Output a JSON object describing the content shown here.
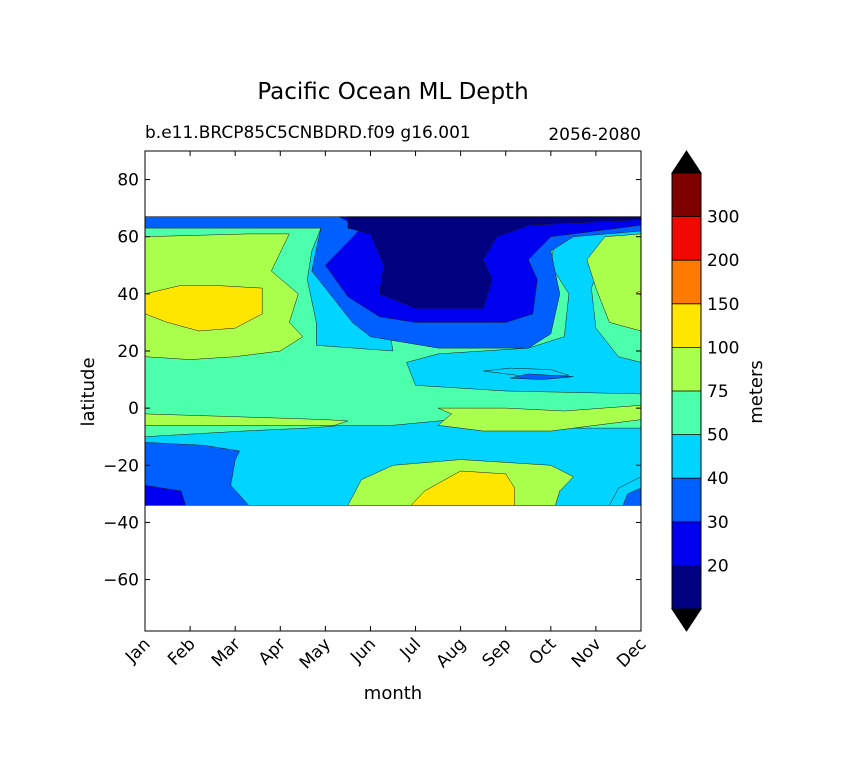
{
  "chart_data": {
    "type": "contourf",
    "title": "Pacific Ocean ML Depth",
    "subtitle_left": "b.e11.BRCP85C5CNBDRD.f09 g16.001",
    "subtitle_right": "2056-2080",
    "xlabel": "month",
    "ylabel": "latitude",
    "colorbar_label": "meters",
    "x_ticks": [
      "Jan",
      "Feb",
      "Mar",
      "Apr",
      "May",
      "Jun",
      "Jul",
      "Aug",
      "Sep",
      "Oct",
      "Nov",
      "Dec"
    ],
    "xlim": [
      0,
      11
    ],
    "y_ticks": [
      80,
      60,
      40,
      20,
      0,
      -20,
      -40,
      -60
    ],
    "ylim": [
      -78,
      90
    ],
    "data_lat_range": [
      -34,
      67
    ],
    "levels": [
      10,
      20,
      30,
      40,
      50,
      75,
      100,
      150,
      200,
      300,
      400
    ],
    "level_labels": [
      "20",
      "30",
      "40",
      "50",
      "75",
      "100",
      "150",
      "200",
      "300"
    ],
    "level_colors": [
      "#000080",
      "#0000f1",
      "#0060ff",
      "#00d4ff",
      "#4cffaa",
      "#aaff4c",
      "#ffe600",
      "#ff7a00",
      "#f10800",
      "#800000"
    ],
    "extend": "both",
    "extend_colors": {
      "min": "#000000",
      "max": "#000000"
    },
    "minus_sign": "−",
    "regions": [
      {
        "level": 4,
        "points": [
          [
            0,
            -34
          ],
          [
            11,
            -34
          ],
          [
            11,
            67
          ],
          [
            0,
            67
          ]
        ]
      },
      {
        "level": 3,
        "points": [
          [
            0,
            -34
          ],
          [
            11,
            -34
          ],
          [
            11,
            -7
          ],
          [
            9.3,
            -7
          ],
          [
            7.5,
            -3
          ],
          [
            5.5,
            -6
          ],
          [
            4.4,
            -6
          ],
          [
            3.6,
            -7
          ],
          [
            2.2,
            -8
          ],
          [
            0,
            -10
          ]
        ]
      },
      {
        "level": 2,
        "points": [
          [
            0,
            -34
          ],
          [
            2.3,
            -34
          ],
          [
            1.9,
            -27
          ],
          [
            2,
            -18
          ],
          [
            2.1,
            -15
          ],
          [
            1.3,
            -13
          ],
          [
            0,
            -12
          ]
        ]
      },
      {
        "level": 1,
        "points": [
          [
            0,
            -34
          ],
          [
            0.9,
            -34
          ],
          [
            0.8,
            -29
          ],
          [
            0,
            -27
          ]
        ]
      },
      {
        "level": 3,
        "points": [
          [
            11,
            -34
          ],
          [
            10.3,
            -34
          ],
          [
            10.5,
            -28
          ],
          [
            11,
            -24
          ]
        ]
      },
      {
        "level": 2,
        "points": [
          [
            11,
            -34
          ],
          [
            10.6,
            -34
          ],
          [
            10.7,
            -30
          ],
          [
            11,
            -28
          ]
        ]
      },
      {
        "level": 5,
        "points": [
          [
            4.5,
            -34
          ],
          [
            9.1,
            -34
          ],
          [
            9.2,
            -29
          ],
          [
            9.5,
            -24
          ],
          [
            9,
            -20
          ],
          [
            8,
            -19
          ],
          [
            7,
            -18
          ],
          [
            5.5,
            -20
          ],
          [
            4.8,
            -25
          ]
        ]
      },
      {
        "level": 6,
        "points": [
          [
            5.9,
            -34
          ],
          [
            8.2,
            -34
          ],
          [
            8.2,
            -28
          ],
          [
            8,
            -23
          ],
          [
            7,
            -22
          ],
          [
            6.2,
            -29
          ]
        ]
      },
      {
        "level": 5,
        "points": [
          [
            0,
            -2
          ],
          [
            2,
            -3
          ],
          [
            4,
            -4
          ],
          [
            4.5,
            -4.5
          ],
          [
            4.2,
            -6
          ],
          [
            3,
            -6
          ],
          [
            1.5,
            -6
          ],
          [
            0,
            -6
          ]
        ]
      },
      {
        "level": 5,
        "points": [
          [
            11,
            1
          ],
          [
            9.3,
            -1
          ],
          [
            8,
            0
          ],
          [
            6.5,
            0
          ],
          [
            6.8,
            -2
          ],
          [
            6.5,
            -6
          ],
          [
            7.5,
            -8
          ],
          [
            9,
            -8
          ],
          [
            11,
            -4
          ]
        ]
      },
      {
        "level": 3,
        "points": [
          [
            11,
            5
          ],
          [
            8,
            6
          ],
          [
            6,
            8
          ],
          [
            5.8,
            16
          ],
          [
            6.5,
            19
          ],
          [
            8.5,
            21
          ],
          [
            9.3,
            25
          ],
          [
            9.4,
            40
          ],
          [
            9,
            50
          ],
          [
            9.1,
            60
          ],
          [
            11,
            63
          ],
          [
            11,
            52
          ],
          [
            10.1,
            50
          ],
          [
            9.9,
            42
          ],
          [
            10,
            28
          ],
          [
            10.5,
            18
          ],
          [
            11,
            16
          ]
        ]
      },
      {
        "level": 3,
        "points": [
          [
            5.5,
            20
          ],
          [
            3.8,
            22
          ],
          [
            3.8,
            30
          ],
          [
            3.6,
            45
          ],
          [
            3.7,
            55
          ],
          [
            3.9,
            63
          ],
          [
            5,
            63
          ]
        ]
      },
      {
        "level": 3,
        "points": [
          [
            7.5,
            13
          ],
          [
            8.5,
            11
          ],
          [
            9.4,
            11.5
          ],
          [
            9,
            13.5
          ],
          [
            8.1,
            14
          ]
        ]
      },
      {
        "level": 2,
        "points": [
          [
            8.1,
            10.5
          ],
          [
            8.8,
            10
          ],
          [
            9.5,
            11
          ],
          [
            8.5,
            12
          ]
        ]
      },
      {
        "level": 2,
        "points": [
          [
            3.9,
            63
          ],
          [
            3.7,
            48
          ],
          [
            4.1,
            40
          ],
          [
            4.6,
            30
          ],
          [
            5,
            25
          ],
          [
            6.5,
            21
          ],
          [
            8.5,
            21
          ],
          [
            9,
            26
          ],
          [
            9.2,
            40
          ],
          [
            9,
            55
          ],
          [
            9.5,
            60
          ],
          [
            11,
            62
          ],
          [
            11,
            67
          ],
          [
            0,
            67
          ],
          [
            0,
            63
          ]
        ]
      },
      {
        "level": 1,
        "points": [
          [
            4.8,
            63
          ],
          [
            4,
            50
          ],
          [
            4.5,
            39
          ],
          [
            5.2,
            32
          ],
          [
            6,
            30
          ],
          [
            8,
            30
          ],
          [
            8.6,
            33
          ],
          [
            8.7,
            45
          ],
          [
            8.5,
            52
          ],
          [
            9,
            60
          ],
          [
            11,
            64
          ],
          [
            11,
            67
          ],
          [
            4.3,
            67
          ]
        ]
      },
      {
        "level": 0,
        "points": [
          [
            4.5,
            67
          ],
          [
            4.5,
            63
          ],
          [
            5,
            61
          ],
          [
            5.3,
            50
          ],
          [
            5.2,
            40
          ],
          [
            6,
            35
          ],
          [
            7.5,
            35
          ],
          [
            7.7,
            45
          ],
          [
            7.5,
            52
          ],
          [
            7.8,
            60
          ],
          [
            8.5,
            64
          ],
          [
            11,
            66
          ],
          [
            11,
            67
          ]
        ]
      },
      {
        "level": 5,
        "points": [
          [
            0,
            60
          ],
          [
            2.3,
            61
          ],
          [
            3.2,
            61
          ],
          [
            2.8,
            48
          ],
          [
            3.4,
            40
          ],
          [
            3.2,
            30
          ],
          [
            3.5,
            25
          ],
          [
            3,
            20
          ],
          [
            2,
            18
          ],
          [
            1,
            17
          ],
          [
            0,
            18
          ]
        ]
      },
      {
        "level": 6,
        "points": [
          [
            0,
            40
          ],
          [
            0.8,
            43
          ],
          [
            1.5,
            43
          ],
          [
            2.6,
            42
          ],
          [
            2.6,
            33
          ],
          [
            2,
            28
          ],
          [
            1.2,
            27
          ],
          [
            0.5,
            30
          ],
          [
            0,
            33
          ]
        ]
      },
      {
        "level": 5,
        "points": [
          [
            11,
            61
          ],
          [
            10.2,
            60
          ],
          [
            9.8,
            52
          ],
          [
            10,
            42
          ],
          [
            10.3,
            30
          ],
          [
            11,
            27
          ]
        ]
      },
      {
        "level": 6,
        "points": [
          [
            11,
            41
          ],
          [
            10.9,
            40.5
          ],
          [
            11,
            39.5
          ]
        ]
      }
    ]
  }
}
